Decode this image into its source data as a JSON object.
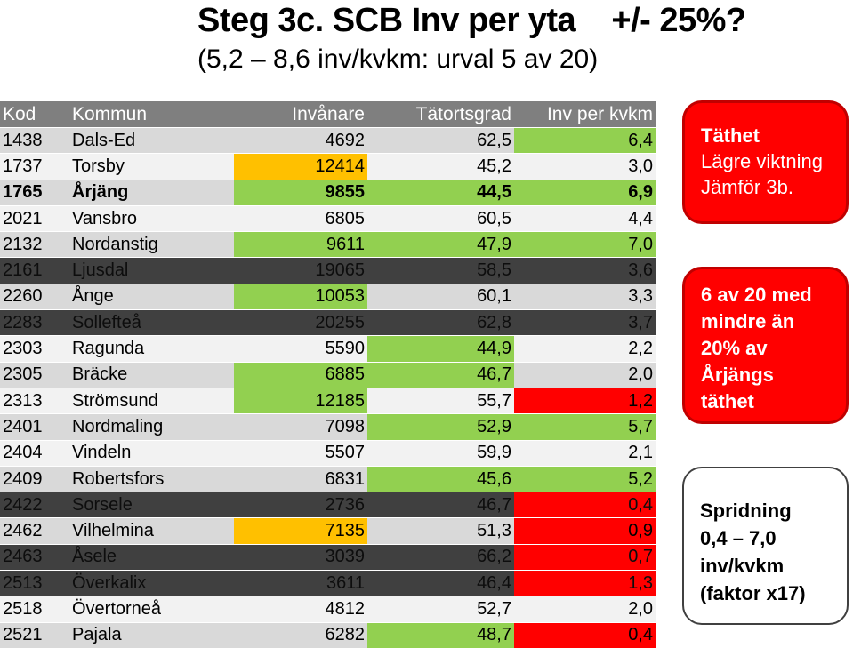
{
  "title": "Steg 3c. SCB Inv per yta    +/- 25%?",
  "subtitle": "(5,2 – 8,6 inv/kvkm: urval 5 av 20)",
  "table": {
    "headers": [
      "Kod",
      "Kommun",
      "Invånare",
      "Tätortsgrad",
      "Inv per kvkm"
    ],
    "rows": [
      {
        "kod": "1438",
        "kommun": "Dals-Ed",
        "invanare": "4692",
        "tatortsgrad": "62,5",
        "inv": "6,4"
      },
      {
        "kod": "1737",
        "kommun": "Torsby",
        "invanare": "12414",
        "tatortsgrad": "45,2",
        "inv": "3,0"
      },
      {
        "kod": "1765",
        "kommun": "Årjäng",
        "invanare": "9855",
        "tatortsgrad": "44,5",
        "inv": "6,9"
      },
      {
        "kod": "2021",
        "kommun": "Vansbro",
        "invanare": "6805",
        "tatortsgrad": "60,5",
        "inv": "4,4"
      },
      {
        "kod": "2132",
        "kommun": "Nordanstig",
        "invanare": "9611",
        "tatortsgrad": "47,9",
        "inv": "7,0"
      },
      {
        "kod": "2161",
        "kommun": "Ljusdal",
        "invanare": "19065",
        "tatortsgrad": "58,5",
        "inv": "3,6"
      },
      {
        "kod": "2260",
        "kommun": "Ånge",
        "invanare": "10053",
        "tatortsgrad": "60,1",
        "inv": "3,3"
      },
      {
        "kod": "2283",
        "kommun": "Sollefteå",
        "invanare": "20255",
        "tatortsgrad": "62,8",
        "inv": "3,7"
      },
      {
        "kod": "2303",
        "kommun": "Ragunda",
        "invanare": "5590",
        "tatortsgrad": "44,9",
        "inv": "2,2"
      },
      {
        "kod": "2305",
        "kommun": "Bräcke",
        "invanare": "6885",
        "tatortsgrad": "46,7",
        "inv": "2,0"
      },
      {
        "kod": "2313",
        "kommun": "Strömsund",
        "invanare": "12185",
        "tatortsgrad": "55,7",
        "inv": "1,2"
      },
      {
        "kod": "2401",
        "kommun": "Nordmaling",
        "invanare": "7098",
        "tatortsgrad": "52,9",
        "inv": "5,7"
      },
      {
        "kod": "2404",
        "kommun": "Vindeln",
        "invanare": "5507",
        "tatortsgrad": "59,9",
        "inv": "2,1"
      },
      {
        "kod": "2409",
        "kommun": "Robertsfors",
        "invanare": "6831",
        "tatortsgrad": "45,6",
        "inv": "5,2"
      },
      {
        "kod": "2422",
        "kommun": "Sorsele",
        "invanare": "2736",
        "tatortsgrad": "46,7",
        "inv": "0,4"
      },
      {
        "kod": "2462",
        "kommun": "Vilhelmina",
        "invanare": "7135",
        "tatortsgrad": "51,3",
        "inv": "0,9"
      },
      {
        "kod": "2463",
        "kommun": "Åsele",
        "invanare": "3039",
        "tatortsgrad": "66,2",
        "inv": "0,7"
      },
      {
        "kod": "2513",
        "kommun": "Överkalix",
        "invanare": "3611",
        "tatortsgrad": "46,4",
        "inv": "1,3"
      },
      {
        "kod": "2518",
        "kommun": "Övertorneå",
        "invanare": "4812",
        "tatortsgrad": "52,7",
        "inv": "2,0"
      },
      {
        "kod": "2521",
        "kommun": "Pajala",
        "invanare": "6282",
        "tatortsgrad": "48,7",
        "inv": "0,4"
      }
    ]
  },
  "box_tathet": {
    "heading": "Täthet",
    "line2": "Lägre viktning",
    "line3": "Jämför 3b."
  },
  "box_ranking": {
    "line1": "6 av 20 med",
    "line2": "mindre än",
    "line3": "20% av",
    "line4": "Årjängs",
    "line5": "täthet"
  },
  "box_spridning": {
    "line1": "Spridning",
    "line2": "0,4 – 7,0",
    "line3": "inv/kvkm",
    "line4": "(faktor x17)"
  },
  "colors": {
    "green": "#92d050",
    "red": "#ff0000",
    "orange": "#ffc000",
    "header": "#7f7f7f",
    "row_light": "#d9d9d9",
    "row_white": "#f2f2f2",
    "row_dark": "#404040"
  }
}
